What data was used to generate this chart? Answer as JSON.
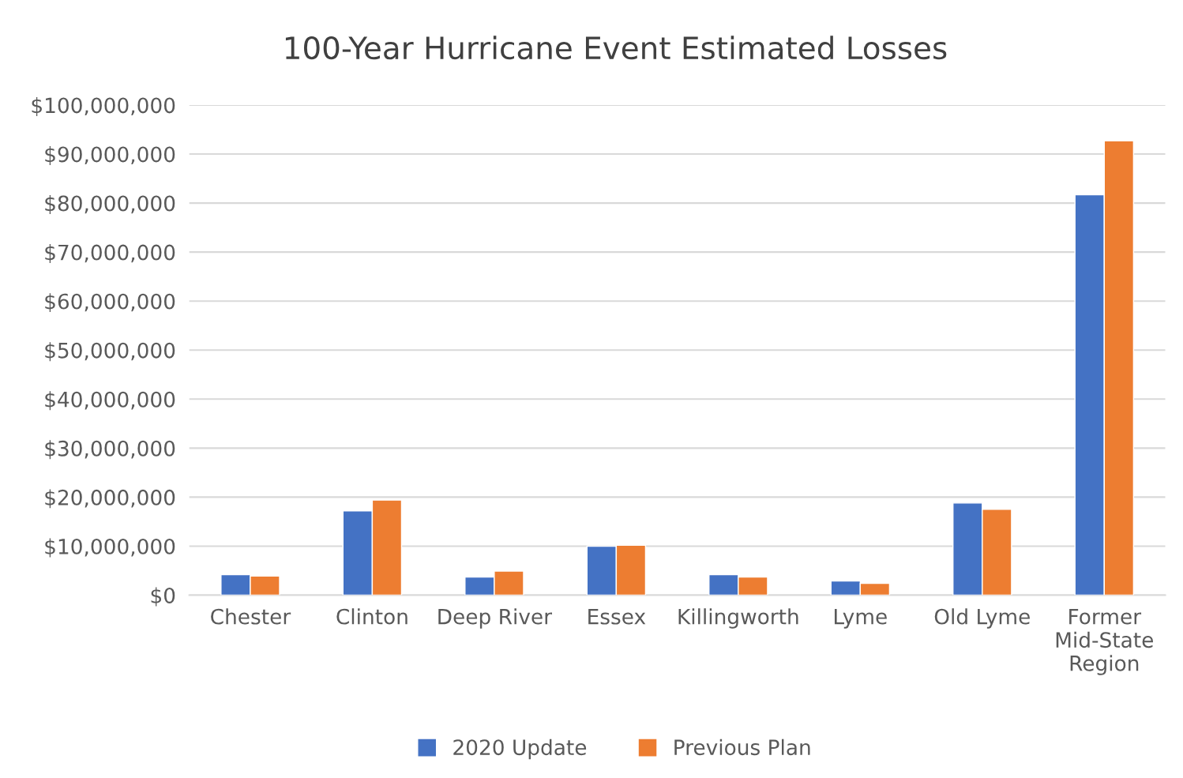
{
  "chart_data": {
    "type": "bar",
    "title": "100-Year Hurricane Event Estimated Losses",
    "categories": [
      "Chester",
      "Clinton",
      "Deep River",
      "Essex",
      "Killingworth",
      "Lyme",
      "Old Lyme",
      "Former\nMid-State\nRegion"
    ],
    "series": [
      {
        "name": "2020 Update",
        "color": "#4472c4",
        "values": [
          4200000,
          17200000,
          3700000,
          10000000,
          4200000,
          2900000,
          18800000,
          81700000
        ]
      },
      {
        "name": "Previous Plan",
        "color": "#ed7d31",
        "values": [
          3900000,
          19400000,
          4900000,
          10200000,
          3700000,
          2400000,
          17500000,
          92700000
        ]
      }
    ],
    "ylim": [
      0,
      100000000
    ],
    "yticks": [
      {
        "value": 0,
        "label": "$0"
      },
      {
        "value": 10000000,
        "label": "$10,000,000"
      },
      {
        "value": 20000000,
        "label": "$20,000,000"
      },
      {
        "value": 30000000,
        "label": "$30,000,000"
      },
      {
        "value": 40000000,
        "label": "$40,000,000"
      },
      {
        "value": 50000000,
        "label": "$50,000,000"
      },
      {
        "value": 60000000,
        "label": "$60,000,000"
      },
      {
        "value": 70000000,
        "label": "$70,000,000"
      },
      {
        "value": 80000000,
        "label": "$80,000,000"
      },
      {
        "value": 90000000,
        "label": "$90,000,000"
      },
      {
        "value": 100000000,
        "label": "$100,000,000"
      }
    ],
    "grid": "y",
    "legend": "bottom"
  }
}
